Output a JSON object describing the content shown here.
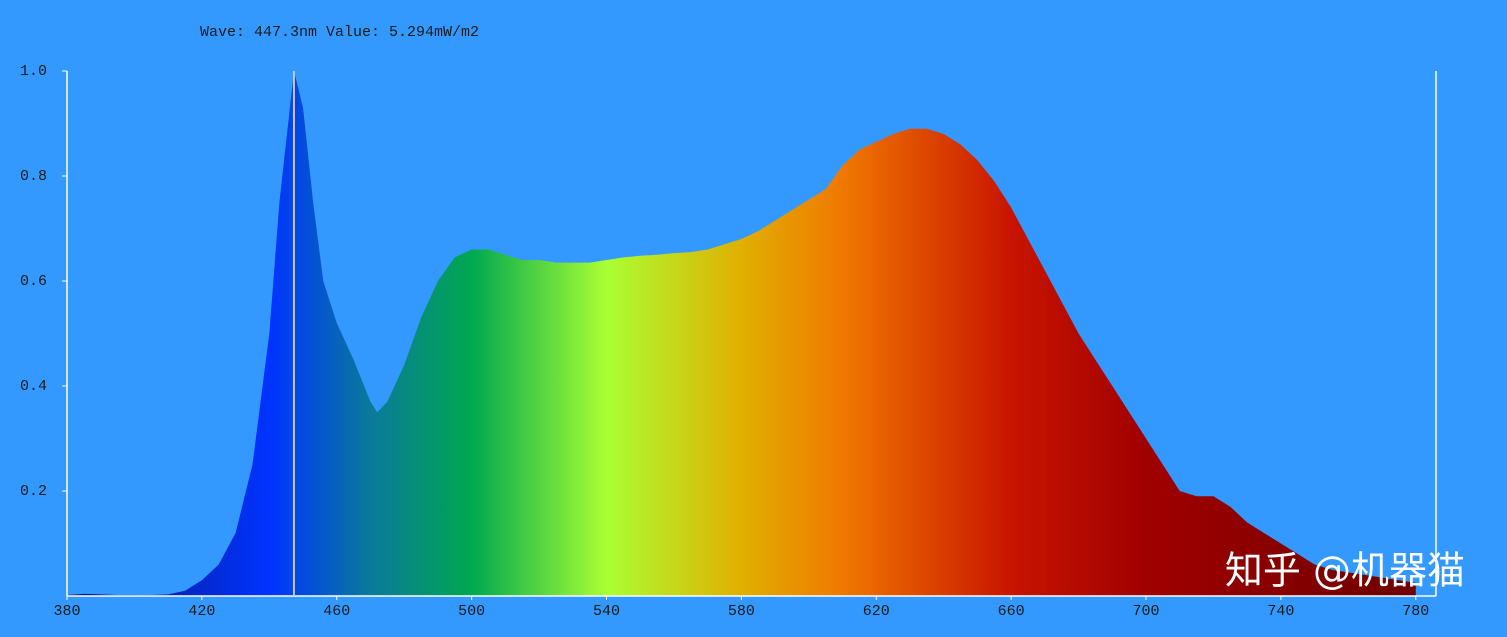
{
  "chart_data": {
    "type": "area",
    "readout": "Wave: 447.3nm Value: 5.294mW/m2",
    "watermark": "知乎 @机器猫",
    "cursor_x": 447.3,
    "x": [
      380,
      385,
      390,
      395,
      400,
      405,
      410,
      415,
      420,
      425,
      430,
      435,
      440,
      443,
      447.3,
      450,
      453,
      456,
      460,
      465,
      470,
      472,
      475,
      480,
      485,
      490,
      495,
      500,
      505,
      510,
      515,
      520,
      525,
      530,
      535,
      540,
      545,
      550,
      555,
      560,
      565,
      570,
      575,
      580,
      585,
      590,
      595,
      600,
      605,
      610,
      615,
      620,
      625,
      630,
      635,
      640,
      645,
      650,
      655,
      660,
      665,
      670,
      675,
      680,
      685,
      690,
      695,
      700,
      705,
      710,
      715,
      720,
      725,
      730,
      735,
      740,
      745,
      750,
      755,
      760,
      765,
      770,
      775,
      780
    ],
    "values": [
      0.002,
      0.004,
      0.003,
      0.002,
      0.002,
      0.002,
      0.003,
      0.01,
      0.03,
      0.06,
      0.12,
      0.25,
      0.5,
      0.75,
      1.0,
      0.93,
      0.75,
      0.6,
      0.52,
      0.45,
      0.37,
      0.35,
      0.37,
      0.44,
      0.53,
      0.6,
      0.645,
      0.66,
      0.66,
      0.65,
      0.64,
      0.64,
      0.635,
      0.635,
      0.635,
      0.64,
      0.645,
      0.648,
      0.65,
      0.653,
      0.655,
      0.66,
      0.67,
      0.68,
      0.695,
      0.715,
      0.735,
      0.755,
      0.775,
      0.82,
      0.85,
      0.865,
      0.88,
      0.89,
      0.89,
      0.88,
      0.86,
      0.83,
      0.79,
      0.74,
      0.68,
      0.62,
      0.56,
      0.5,
      0.45,
      0.4,
      0.35,
      0.3,
      0.25,
      0.2,
      0.19,
      0.19,
      0.17,
      0.14,
      0.12,
      0.1,
      0.08,
      0.06,
      0.05,
      0.045,
      0.04,
      0.035,
      0.03,
      0.025
    ],
    "xlim": [
      380,
      786
    ],
    "ylim": [
      0,
      1
    ],
    "xticks": [
      380,
      420,
      460,
      500,
      540,
      580,
      620,
      660,
      700,
      740,
      780
    ],
    "yticks": [
      0.2,
      0.4,
      0.6,
      0.8,
      {
        "value": 1,
        "label": "1.0"
      }
    ],
    "axis_color": "#ffffff",
    "cursor_color": "#c8c8c8",
    "gradient": [
      {
        "x": 380,
        "color": "#0a1570"
      },
      {
        "x": 440,
        "color": "#0033ff"
      },
      {
        "x": 470,
        "color": "#0a7a9a"
      },
      {
        "x": 500,
        "color": "#00a850"
      },
      {
        "x": 540,
        "color": "#aaff33"
      },
      {
        "x": 580,
        "color": "#e0b000"
      },
      {
        "x": 610,
        "color": "#f07800"
      },
      {
        "x": 660,
        "color": "#c81400"
      },
      {
        "x": 700,
        "color": "#a00000"
      },
      {
        "x": 786,
        "color": "#6a0000"
      }
    ]
  }
}
